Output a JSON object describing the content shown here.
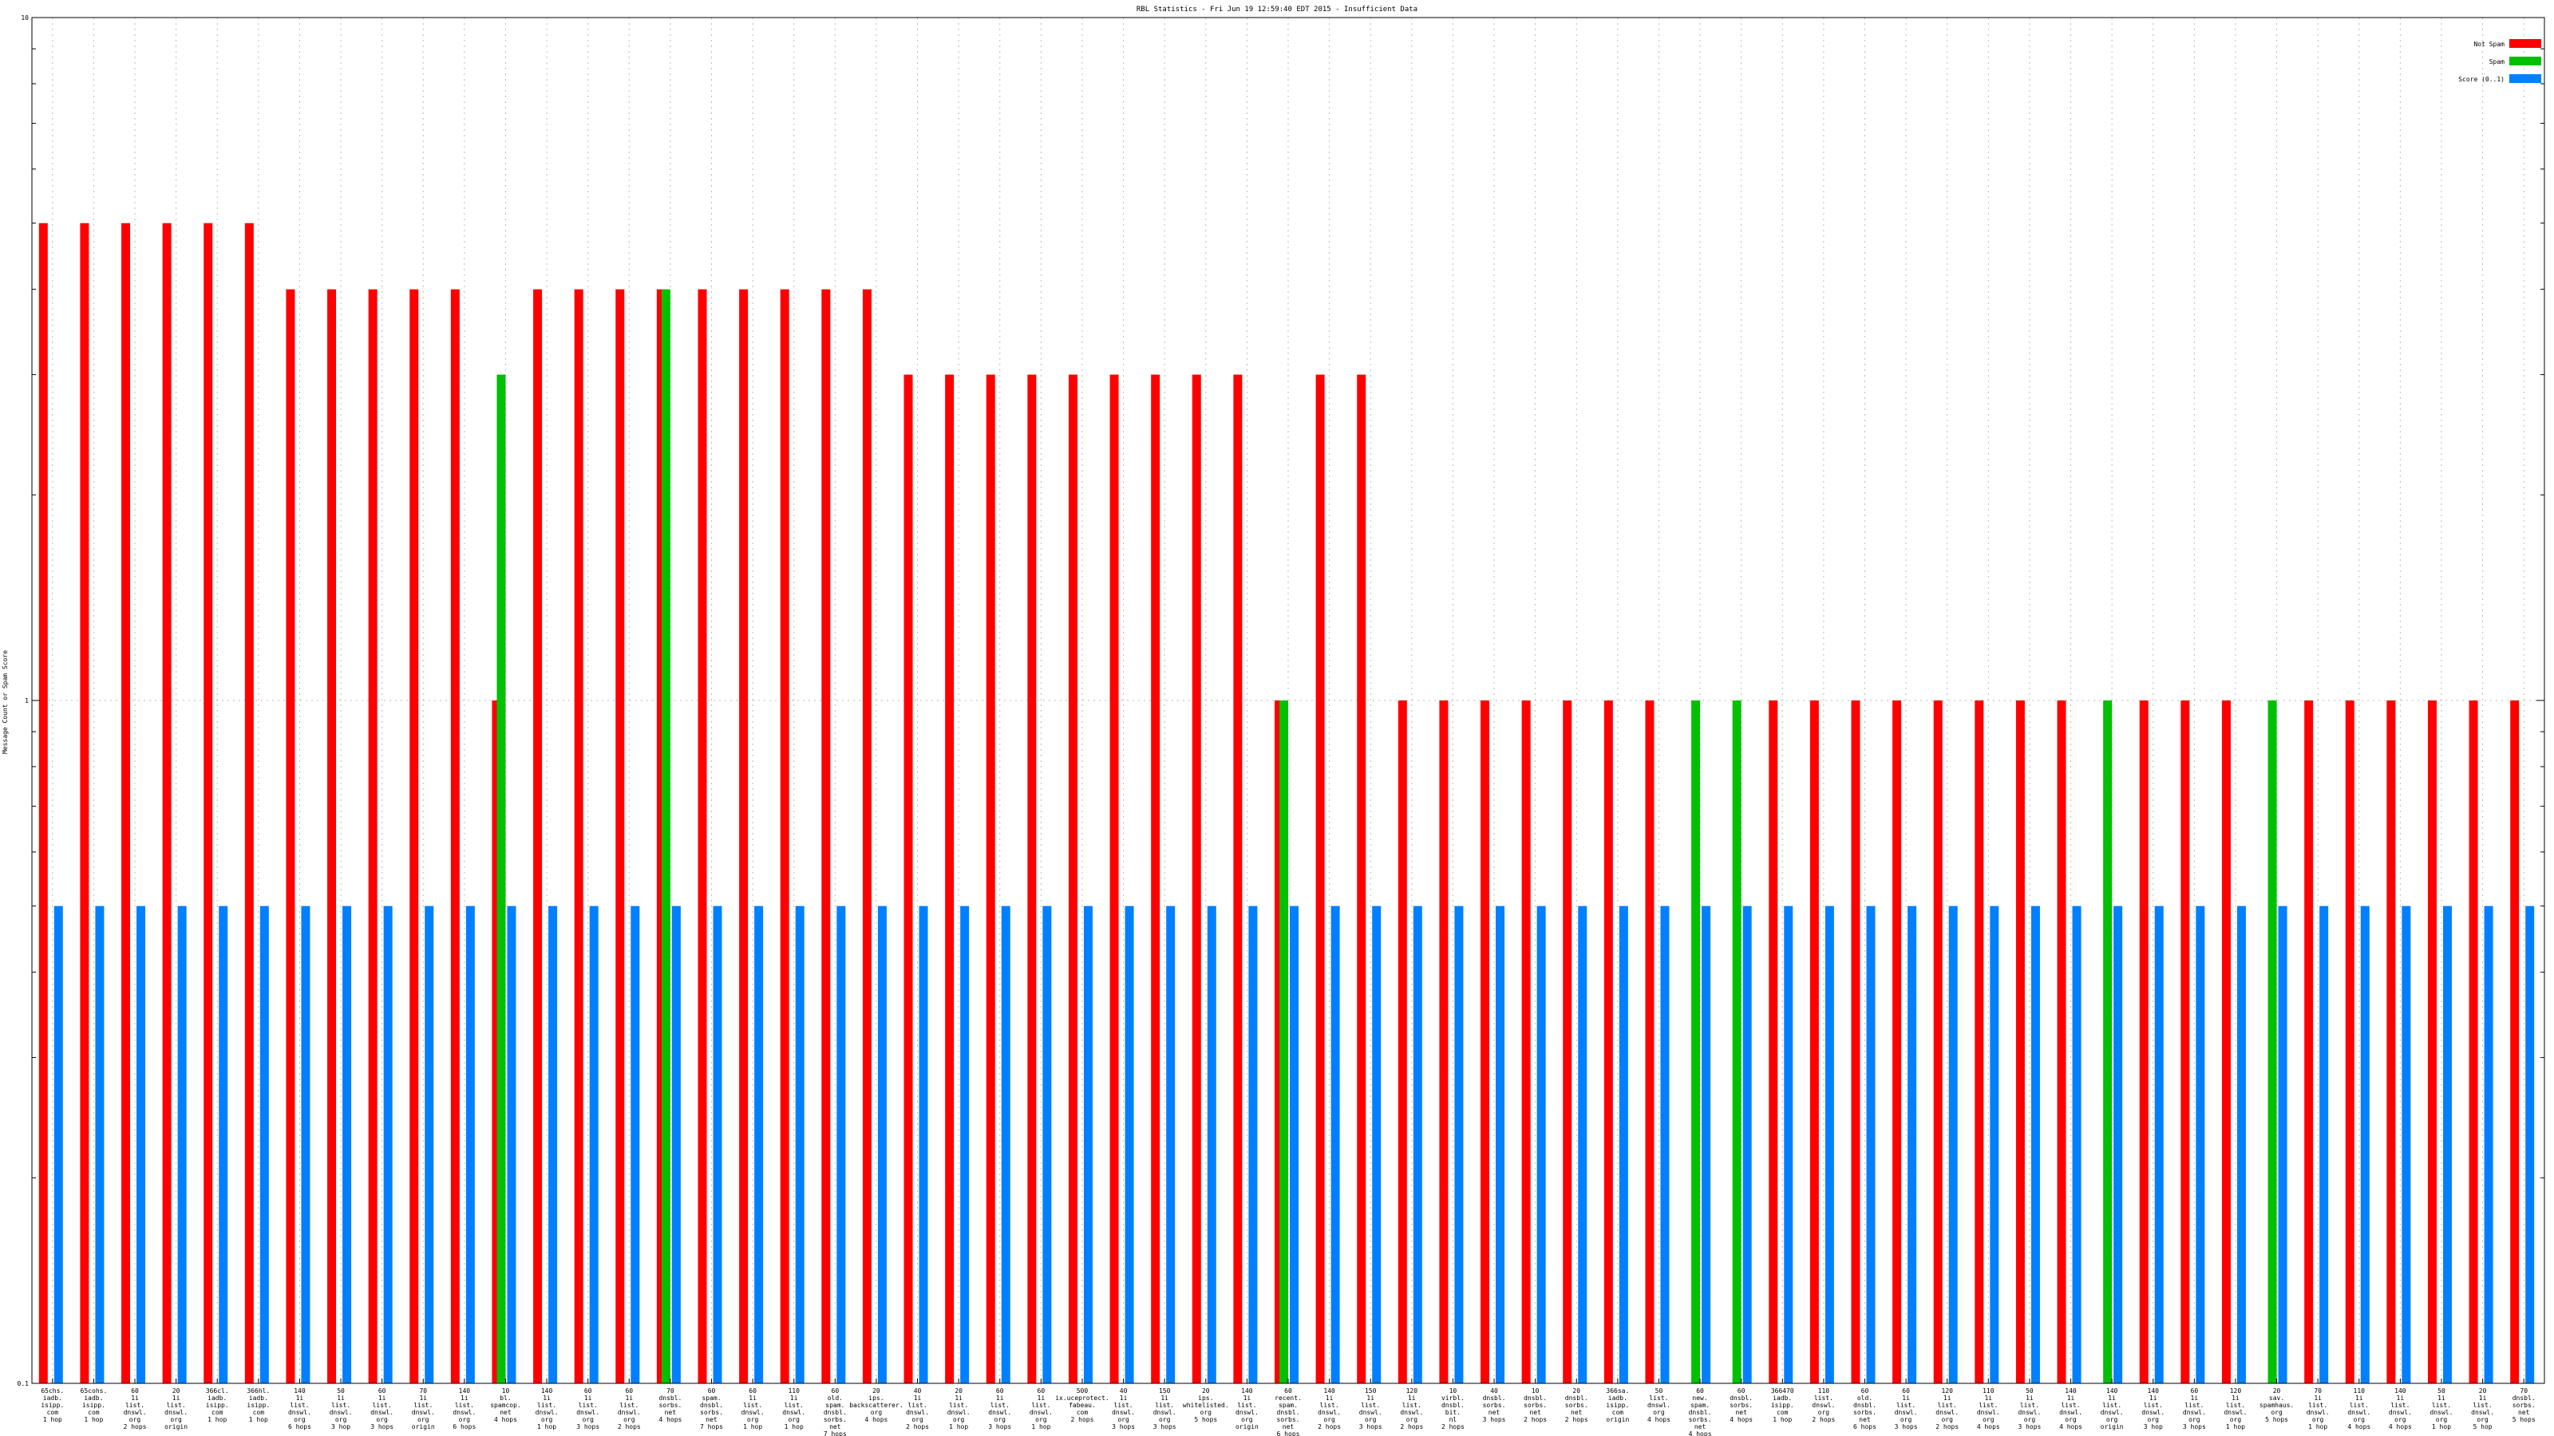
{
  "chart_data": {
    "type": "bar",
    "title": "RBL Statistics - Fri Jun 19 12:59:40 EDT 2015 - Insufficient Data",
    "ylabel": "Message Count or Spam Score",
    "xlabel": "",
    "yscale": "log",
    "ylim": [
      0.1,
      10
    ],
    "yticks": [
      {
        "value": 0.1,
        "label": "0.1"
      },
      {
        "value": 1,
        "label": "1"
      },
      {
        "value": 10,
        "label": "10"
      }
    ],
    "grid": true,
    "legend_position": "top-right",
    "categories": [
      [
        "65chs.",
        "iadb.",
        "isipp.",
        "com",
        "1 hop"
      ],
      [
        "65cohs.",
        "iadb.",
        "isipp.",
        "com",
        "1 hop"
      ],
      [
        "60",
        "1i",
        "list.",
        "dnswl.",
        "org",
        "2 hops"
      ],
      [
        "20",
        "1i",
        "list.",
        "dnswl.",
        "org",
        "origin"
      ],
      [
        "366cl.",
        "iadb.",
        "isipp.",
        "com",
        "1 hop"
      ],
      [
        "366hl.",
        "iadb.",
        "isipp.",
        "com",
        "1 hop"
      ],
      [
        "140",
        "1i",
        "list.",
        "dnswl.",
        "org",
        "6 hops"
      ],
      [
        "50",
        "1i",
        "list.",
        "dnswl.",
        "org",
        "3 hop"
      ],
      [
        "60",
        "1i",
        "list.",
        "dnswl.",
        "org",
        "3 hops"
      ],
      [
        "70",
        "1i",
        "list.",
        "dnswl.",
        "org",
        "origin"
      ],
      [
        "140",
        "1i",
        "list.",
        "dnswl.",
        "org",
        "6 hops"
      ],
      [
        "10",
        "bl.",
        "spamcop.",
        "net",
        "4 hops"
      ],
      [
        "140",
        "1i",
        "list.",
        "dnswl.",
        "org",
        "1 hop"
      ],
      [
        "60",
        "1i",
        "list.",
        "dnswl.",
        "org",
        "3 hops"
      ],
      [
        "60",
        "1i",
        "list.",
        "dnswl.",
        "org",
        "2 hops"
      ],
      [
        "70",
        "dnsbl.",
        "sorbs.",
        "net",
        "4 hops"
      ],
      [
        "60",
        "spam.",
        "dnsbl.",
        "sorbs.",
        "net",
        "7 hops"
      ],
      [
        "60",
        "1i",
        "list.",
        "dnswl.",
        "org",
        "1 hop"
      ],
      [
        "110",
        "1i",
        "list.",
        "dnswl.",
        "org",
        "1 hop"
      ],
      [
        "60",
        "old.",
        "spam.",
        "dnsbl.",
        "sorbs.",
        "net",
        "7 hops"
      ],
      [
        "20",
        "ips.",
        "backscatterer.",
        "org",
        "4 hops"
      ],
      [
        "40",
        "1i",
        "list.",
        "dnswl.",
        "org",
        "2 hops"
      ],
      [
        "20",
        "1i",
        "list.",
        "dnswl.",
        "org",
        "1 hop"
      ],
      [
        "60",
        "1i",
        "list.",
        "dnswl.",
        "org",
        "3 hops"
      ],
      [
        "60",
        "1i",
        "list.",
        "dnswl.",
        "org",
        "1 hop"
      ],
      [
        "500",
        "ix.uceprotect.",
        "fabeau.",
        "com",
        "2 hops"
      ],
      [
        "40",
        "1i",
        "list.",
        "dnswl.",
        "org",
        "3 hops"
      ],
      [
        "150",
        "1i",
        "list.",
        "dnswl.",
        "org",
        "3 hops"
      ],
      [
        "20",
        "ips.",
        "whitelisted.",
        "org",
        "5 hops"
      ],
      [
        "140",
        "1i",
        "list.",
        "dnswl.",
        "org",
        "origin"
      ],
      [
        "60",
        "recent.",
        "spam.",
        "dnsbl.",
        "sorbs.",
        "net",
        "6 hops"
      ],
      [
        "140",
        "1i",
        "list.",
        "dnswl.",
        "org",
        "2 hops"
      ],
      [
        "150",
        "1i",
        "list.",
        "dnswl.",
        "org",
        "3 hops"
      ],
      [
        "120",
        "1i",
        "list.",
        "dnswl.",
        "org",
        "2 hops"
      ],
      [
        "10",
        "virbl.",
        "dnsbl.",
        "bit.",
        "nl",
        "2 hops"
      ],
      [
        "40",
        "dnsbl.",
        "sorbs.",
        "net",
        "3 hops"
      ],
      [
        "10",
        "dnsbl.",
        "sorbs.",
        "net",
        "2 hops"
      ],
      [
        "20",
        "dnsbl.",
        "sorbs.",
        "net",
        "2 hops"
      ],
      [
        "366sa.",
        "iadb.",
        "isipp.",
        "com",
        "origin"
      ],
      [
        "50",
        "list.",
        "dnswl.",
        "org",
        "4 hops"
      ],
      [
        "60",
        "new.",
        "spam.",
        "dnsbl.",
        "sorbs.",
        "net",
        "4 hops"
      ],
      [
        "60",
        "dnsbl.",
        "sorbs.",
        "net",
        "4 hops"
      ],
      [
        "366470",
        "iadb.",
        "isipp.",
        "com",
        "1 hop"
      ],
      [
        "110",
        "list.",
        "dnswl.",
        "org",
        "2 hops"
      ],
      [
        "60",
        "old.",
        "dnsbl.",
        "sorbs.",
        "net",
        "6 hops"
      ],
      [
        "60",
        "1i",
        "list.",
        "dnswl.",
        "org",
        "3 hops"
      ],
      [
        "120",
        "1i",
        "list.",
        "dnswl.",
        "org",
        "2 hops"
      ],
      [
        "110",
        "1i",
        "list.",
        "dnswl.",
        "org",
        "4 hops"
      ],
      [
        "50",
        "1i",
        "list.",
        "dnswl.",
        "org",
        "3 hops"
      ],
      [
        "140",
        "1i",
        "list.",
        "dnswl.",
        "org",
        "4 hops"
      ],
      [
        "140",
        "1i",
        "list.",
        "dnswl.",
        "org",
        "origin"
      ],
      [
        "140",
        "1i",
        "list.",
        "dnswl.",
        "org",
        "3 hop"
      ],
      [
        "60",
        "1i",
        "list.",
        "dnswl.",
        "org",
        "3 hops"
      ],
      [
        "120",
        "1i",
        "list.",
        "dnswl.",
        "org",
        "1 hop"
      ],
      [
        "20",
        "sav.",
        "spamhaus.",
        "org",
        "5 hops"
      ],
      [
        "70",
        "1i",
        "list.",
        "dnswl.",
        "org",
        "1 hop"
      ],
      [
        "110",
        "1i",
        "list.",
        "dnswl.",
        "org",
        "4 hops"
      ],
      [
        "140",
        "1i",
        "list.",
        "dnswl.",
        "org",
        "4 hops"
      ],
      [
        "50",
        "1i",
        "list.",
        "dnswl.",
        "org",
        "1 hop"
      ],
      [
        "20",
        "1i",
        "list.",
        "dnswl.",
        "org",
        "5 hop"
      ],
      [
        "70",
        "dnsbl.",
        "sorbs.",
        "net",
        "5 hops"
      ]
    ],
    "series": [
      {
        "name": "Not Spam",
        "color": "#ff0000",
        "values": [
          5,
          5,
          5,
          5,
          5,
          5,
          4,
          4,
          4,
          4,
          4,
          1,
          4,
          4,
          4,
          4,
          4,
          4,
          4,
          4,
          4,
          3,
          3,
          3,
          3,
          3,
          3,
          3,
          3,
          3,
          1,
          3,
          3,
          1,
          1,
          1,
          1,
          1,
          1,
          1,
          0,
          0,
          1,
          1,
          1,
          1,
          1,
          1,
          1,
          1,
          0,
          1,
          1,
          1,
          0,
          1,
          1,
          1,
          1,
          1,
          1
        ]
      },
      {
        "name": "Spam",
        "color": "#00c000",
        "values": [
          0,
          0,
          0,
          0,
          0,
          0,
          0,
          0,
          0,
          0,
          0,
          3,
          0,
          0,
          0,
          4,
          0,
          0,
          0,
          0,
          0,
          0,
          0,
          0,
          0,
          0,
          0,
          0,
          0,
          0,
          1,
          0,
          0,
          0,
          0,
          0,
          0,
          0,
          0,
          0,
          1,
          1,
          0,
          0,
          0,
          0,
          0,
          0,
          0,
          0,
          1,
          0,
          0,
          0,
          1,
          0,
          0,
          0,
          0,
          0,
          0
        ]
      },
      {
        "name": "Score (0..1)",
        "color": "#0080ff",
        "values": [
          0.5,
          0.5,
          0.5,
          0.5,
          0.5,
          0.5,
          0.5,
          0.5,
          0.5,
          0.5,
          0.5,
          0.5,
          0.5,
          0.5,
          0.5,
          0.5,
          0.5,
          0.5,
          0.5,
          0.5,
          0.5,
          0.5,
          0.5,
          0.5,
          0.5,
          0.5,
          0.5,
          0.5,
          0.5,
          0.5,
          0.5,
          0.5,
          0.5,
          0.5,
          0.5,
          0.5,
          0.5,
          0.5,
          0.5,
          0.5,
          0.5,
          0.5,
          0.5,
          0.5,
          0.5,
          0.5,
          0.5,
          0.5,
          0.5,
          0.5,
          0.5,
          0.5,
          0.5,
          0.5,
          0.5,
          0.5,
          0.5,
          0.5,
          0.5,
          0.5,
          0.5
        ]
      }
    ]
  }
}
